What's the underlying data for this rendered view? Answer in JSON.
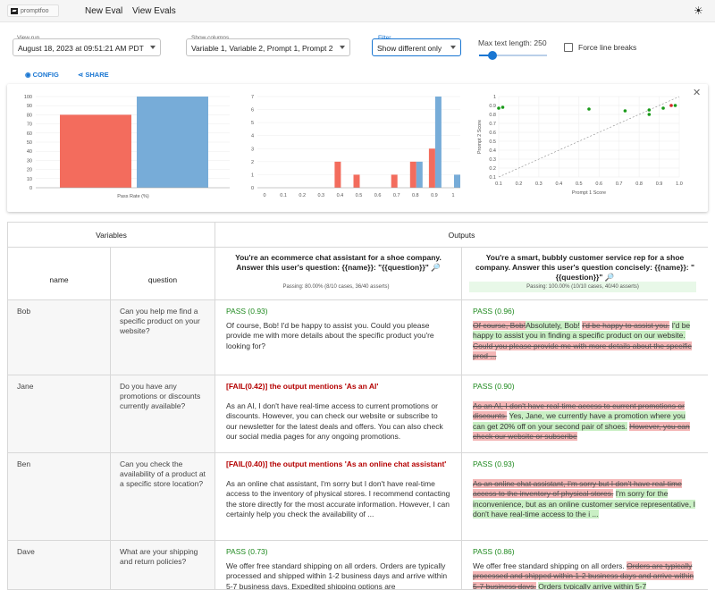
{
  "nav": {
    "logo_text": "promptfoo",
    "new_eval": "New Eval",
    "view_evals": "View Evals"
  },
  "controls": {
    "view_run_label": "View run",
    "view_run_value": "August 18, 2023 at 09:51:21 AM PDT",
    "show_columns_label": "Show columns",
    "show_columns_value": "Variable 1, Variable 2, Prompt 1, Prompt 2",
    "filter_label": "Filter",
    "filter_value": "Show different only",
    "max_text_label": "Max text length: 250",
    "force_breaks_label": "Force line breaks",
    "config_label": "CONFIG",
    "share_label": "SHARE"
  },
  "chart_data": [
    {
      "type": "bar",
      "categories": [
        "Prompt 1",
        "Prompt 2"
      ],
      "values": [
        80,
        100
      ],
      "colors": [
        "#f36c5d",
        "#77acd8"
      ],
      "xlabel": "Pass Rate (%)",
      "ylim": [
        0,
        100
      ],
      "yticks": [
        0,
        10,
        20,
        30,
        40,
        50,
        60,
        70,
        80,
        90,
        100
      ]
    },
    {
      "type": "bar",
      "xticks": [
        "0",
        "0.1",
        "0.2",
        "0.3",
        "0.4",
        "0.5",
        "0.6",
        "0.7",
        "0.8",
        "0.9",
        "1"
      ],
      "series": [
        {
          "color": "#f36c5d",
          "x": [
            0.4,
            0.5,
            0.7,
            0.8,
            0.9
          ],
          "values": [
            2,
            1,
            1,
            2,
            3
          ]
        },
        {
          "color": "#77acd8",
          "x": [
            0.8,
            0.9,
            1.0
          ],
          "values": [
            2,
            7,
            1
          ]
        }
      ],
      "ylim": [
        0,
        7
      ],
      "yticks": [
        0,
        1,
        2,
        3,
        4,
        5,
        6,
        7
      ]
    },
    {
      "type": "scatter",
      "xlabel": "Prompt 1 Score",
      "ylabel": "Prompt 2 Score",
      "xlim": [
        0.1,
        1.0
      ],
      "ylim": [
        0.1,
        1.0
      ],
      "xticks": [
        "0.1",
        "0.2",
        "0.3",
        "0.4",
        "0.5",
        "0.6",
        "0.7",
        "0.8",
        "0.9",
        "1.0"
      ],
      "yticks": [
        "0.1",
        "0.2",
        "0.3",
        "0.4",
        "0.5",
        "0.6",
        "0.7",
        "0.8",
        "0.9",
        "1"
      ],
      "points": [
        [
          0.1,
          0.87
        ],
        [
          0.12,
          0.88
        ],
        [
          0.55,
          0.86
        ],
        [
          0.73,
          0.84
        ],
        [
          0.85,
          0.85
        ],
        [
          0.85,
          0.8
        ],
        [
          0.92,
          0.87
        ],
        [
          0.96,
          0.9
        ],
        [
          0.98,
          0.9
        ]
      ],
      "point_colors": [
        "#1a9a1a",
        "#1a9a1a",
        "#1a9a1a",
        "#1a9a1a",
        "#1a9a1a",
        "#1a9a1a",
        "#1a9a1a",
        "#d62728",
        "#1a9a1a"
      ]
    }
  ],
  "table": {
    "variables_header": "Variables",
    "outputs_header": "Outputs",
    "col_name": "name",
    "col_question": "question",
    "prompt1": "You're an ecommerce chat assistant for a shoe company. Answer this user's question: {{name}}: \"{{question}}\" 🔎",
    "prompt2": "You're a smart, bubbly customer service rep for a shoe company. Answer this user's question concisely: {{name}}: \"{{question}}\" 🔎",
    "passing1": "Passing: 80.00% (8/10 cases, 36/40 asserts)",
    "passing2": "Passing: 100.00% (10/10 cases, 40/40 asserts)",
    "rows": [
      {
        "name": "Bob",
        "question": "Can you help me find a specific product on your website?",
        "o1_status": "PASS (0.93)",
        "o1_text": "Of course, Bob! I'd be happy to assist you. Could you please provide me with more details about the specific product you're looking for?",
        "o2_status": "PASS (0.96)",
        "o2_del1": "Of course, Bob!",
        "o2_add1": "Absolutely, Bob!",
        "o2_del2": "I'd be happy to assist you.",
        "o2_add2": "I'd be happy to assist you in finding a specific product on our website.",
        "o2_del3": "Could you please provide me with more details about the specific prod ..."
      },
      {
        "name": "Jane",
        "question": "Do you have any promotions or discounts currently available?",
        "o1_status": "[FAIL(0.42)] the output mentions 'As an AI'",
        "o1_text": "As an AI, I don't have real-time access to current promotions or discounts. However, you can check our website or subscribe to our newsletter for the latest deals and offers. You can also check our social media pages for any ongoing promotions.",
        "o2_status": "PASS (0.90)",
        "o2_del1": "As an AI, I don't have real-time access to current promotions or discounts.",
        "o2_add1": "Yes, Jane, we currently have a promotion where you can get 20% off on your second pair of shoes.",
        "o2_del2": "However, you can check our website or subscribe"
      },
      {
        "name": "Ben",
        "question": "Can you check the availability of a product at a specific store location?",
        "o1_status": "[FAIL(0.40)] the output mentions 'As an online chat assistant'",
        "o1_text": "As an online chat assistant, I'm sorry but I don't have real-time access to the inventory of physical stores. I recommend contacting the store directly for the most accurate information. However, I can certainly help you check the availability of ...",
        "o2_status": "PASS (0.93)",
        "o2_del1": "As an online chat assistant, I'm sorry but I don't have real-time access to the inventory of physical stores.",
        "o2_add1": "I'm sorry for the inconvenience, but as an online customer service representative, I don't have real-time access to the i ..."
      },
      {
        "name": "Dave",
        "question": "What are your shipping and return policies?",
        "o1_status": "PASS (0.73)",
        "o1_text": "We offer free standard shipping on all orders. Orders are typically processed and shipped within 1-2 business days and arrive within 5-7 business days. Expedited shipping options are",
        "o2_status": "PASS (0.86)",
        "o2_plain": "We offer free standard shipping on all orders.",
        "o2_del1": "Orders are typically processed and shipped within 1-2 business days and arrive within 5-7 business days.",
        "o2_add1": "Orders typically arrive within 5-7"
      }
    ]
  }
}
